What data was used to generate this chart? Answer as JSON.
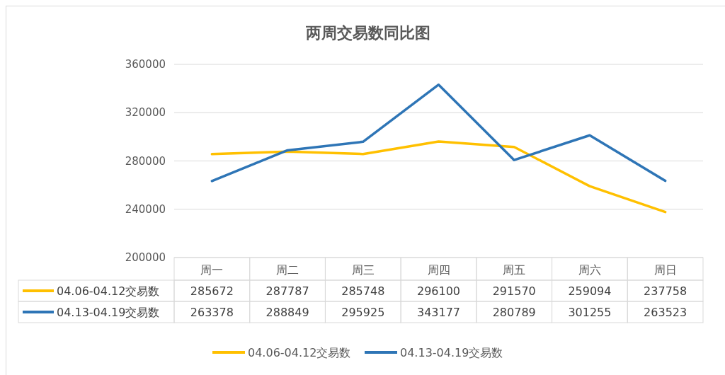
{
  "chart_data": {
    "type": "line",
    "title": "两周交易数同比图",
    "categories": [
      "周一",
      "周二",
      "周三",
      "周四",
      "周五",
      "周六",
      "周日"
    ],
    "series": [
      {
        "name": "04.06-04.12交易数",
        "color": "#ffc000",
        "values": [
          285672,
          287787,
          285748,
          296100,
          291570,
          259094,
          237758
        ]
      },
      {
        "name": "04.13-04.19交易数",
        "color": "#2e75b6",
        "values": [
          263378,
          288849,
          295925,
          343177,
          280789,
          301255,
          263523
        ]
      }
    ],
    "ylim": [
      200000,
      360000
    ],
    "yticks": [
      200000,
      240000,
      280000,
      320000,
      360000
    ],
    "grid": "y",
    "legend": "bottom",
    "data_labels": true,
    "marker": "none",
    "line_style": "solid"
  }
}
